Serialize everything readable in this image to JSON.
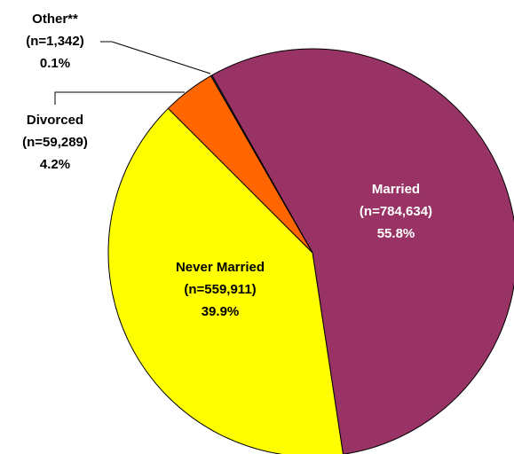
{
  "chart_data": {
    "type": "pie",
    "categories": [
      "Married",
      "Never Married",
      "Divorced",
      "Other**"
    ],
    "count_labels": [
      "(n=784,634)",
      "(n=559,911)",
      "(n=59,289)",
      "(n=1,342)"
    ],
    "values": [
      55.8,
      39.9,
      4.2,
      0.1
    ],
    "value_labels": [
      "55.8%",
      "39.9%",
      "4.2%",
      "0.1%"
    ],
    "colors": [
      "#993366",
      "#ffff00",
      "#ff6600",
      "#336699"
    ]
  }
}
